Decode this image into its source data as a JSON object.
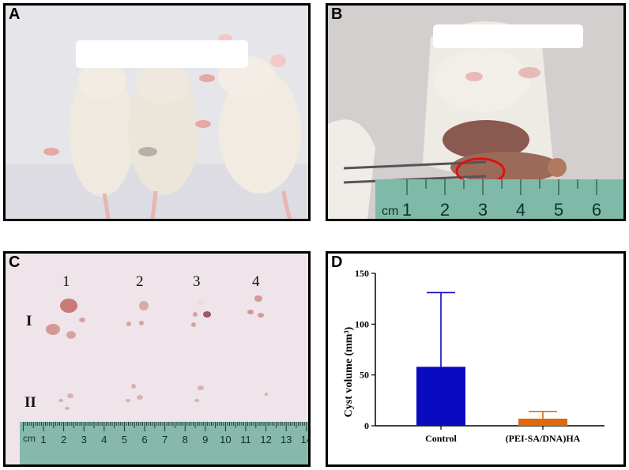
{
  "panels": {
    "a": {
      "letter": "A"
    },
    "b": {
      "letter": "B",
      "ruler_unit": "cm",
      "ruler_numbers": [
        "1",
        "2",
        "3",
        "4",
        "5",
        "6"
      ]
    },
    "c": {
      "letter": "C",
      "columns": [
        "1",
        "2",
        "3",
        "4"
      ],
      "rows": [
        "I",
        "II"
      ],
      "ruler_unit": "cm",
      "ruler_numbers": [
        "1",
        "2",
        "3",
        "4",
        "5",
        "6",
        "7",
        "8",
        "9",
        "10",
        "11",
        "12",
        "13",
        "14"
      ]
    },
    "d": {
      "letter": "D"
    }
  },
  "colors": {
    "control_bar": "#0a0ac0",
    "treatment_bar": "#e0680e",
    "highlight_circle": "#e01010"
  },
  "chart_data": {
    "type": "bar",
    "categories": [
      "Control",
      "(PEI-SA/DNA)HA"
    ],
    "values": [
      58,
      7
    ],
    "error_upper": [
      131,
      14
    ],
    "ylabel": "Cyst volume (mm³)",
    "ylim": [
      0,
      150
    ],
    "yticks": [
      0,
      50,
      100,
      150
    ],
    "grid": false,
    "legend": "none"
  }
}
